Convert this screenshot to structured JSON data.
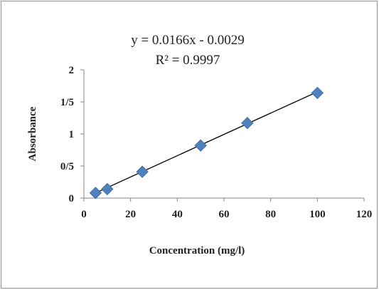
{
  "chart_data": {
    "type": "scatter",
    "title": "",
    "xlabel": "Concentration (mg/l)",
    "ylabel": "Absorbance",
    "xlim": [
      0,
      120
    ],
    "ylim": [
      0,
      2
    ],
    "x_ticks": [
      "0",
      "20",
      "40",
      "60",
      "80",
      "100",
      "120"
    ],
    "y_ticks": [
      "0",
      "0/5",
      "1",
      "1/5",
      "2"
    ],
    "grid": false,
    "legend": "none",
    "marker_color": "#4f81bd",
    "series": [
      {
        "x": [
          5,
          10,
          25,
          50,
          70,
          100
        ],
        "y": [
          0.08,
          0.14,
          0.41,
          0.82,
          1.17,
          1.64
        ]
      }
    ],
    "trendline": {
      "type": "linear",
      "slope": 0.0166,
      "intercept": -0.0029,
      "equation": "y = 0.0166x - 0.0029",
      "r_squared": "R² = 0.9997"
    }
  }
}
